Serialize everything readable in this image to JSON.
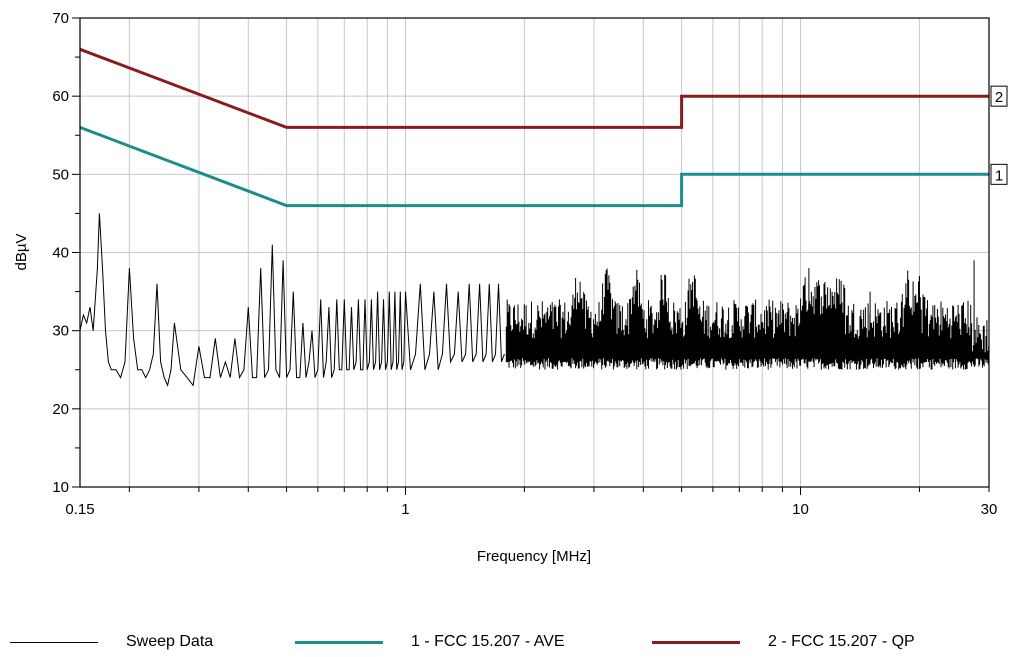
{
  "chart_data": {
    "type": "line",
    "xlabel": "Frequency [MHz]",
    "ylabel": "dBµV",
    "xscale": "log",
    "xlim": [
      0.15,
      30
    ],
    "ylim": [
      10,
      70
    ],
    "xtick_labels": [
      {
        "value": 0.15,
        "label": "0.15"
      },
      {
        "value": 1,
        "label": "1"
      },
      {
        "value": 10,
        "label": "10"
      },
      {
        "value": 30,
        "label": "30"
      }
    ],
    "ytick_labels": [
      {
        "value": 10,
        "label": "10"
      },
      {
        "value": 20,
        "label": "20"
      },
      {
        "value": 30,
        "label": "30"
      },
      {
        "value": 40,
        "label": "40"
      },
      {
        "value": 50,
        "label": "50"
      },
      {
        "value": 60,
        "label": "60"
      },
      {
        "value": 70,
        "label": "70"
      }
    ],
    "grid": true,
    "legend_position": "bottom",
    "series": [
      {
        "name": "Sweep Data",
        "color": "#000000",
        "noise_band": {
          "x_start": 1.8,
          "x_end": 30
        },
        "x": [
          0.15,
          0.153,
          0.156,
          0.159,
          0.162,
          0.166,
          0.168,
          0.171,
          0.174,
          0.177,
          0.18,
          0.185,
          0.19,
          0.195,
          0.2,
          0.205,
          0.21,
          0.215,
          0.22,
          0.225,
          0.23,
          0.235,
          0.24,
          0.245,
          0.25,
          0.255,
          0.26,
          0.27,
          0.28,
          0.29,
          0.3,
          0.31,
          0.32,
          0.33,
          0.34,
          0.35,
          0.36,
          0.37,
          0.38,
          0.39,
          0.4,
          0.41,
          0.42,
          0.43,
          0.44,
          0.45,
          0.46,
          0.47,
          0.48,
          0.49,
          0.5,
          0.51,
          0.52,
          0.53,
          0.54,
          0.55,
          0.56,
          0.57,
          0.58,
          0.59,
          0.6,
          0.61,
          0.62,
          0.63,
          0.64,
          0.65,
          0.66,
          0.67,
          0.68,
          0.69,
          0.7,
          0.71,
          0.72,
          0.73,
          0.74,
          0.75,
          0.76,
          0.77,
          0.78,
          0.79,
          0.8,
          0.81,
          0.82,
          0.83,
          0.84,
          0.85,
          0.86,
          0.87,
          0.88,
          0.89,
          0.9,
          0.91,
          0.92,
          0.93,
          0.94,
          0.95,
          0.96,
          0.97,
          0.98,
          0.99,
          1.0,
          1.03,
          1.06,
          1.09,
          1.12,
          1.15,
          1.18,
          1.21,
          1.24,
          1.27,
          1.3,
          1.33,
          1.36,
          1.39,
          1.42,
          1.45,
          1.48,
          1.51,
          1.54,
          1.57,
          1.6,
          1.63,
          1.66,
          1.69,
          1.72,
          1.75,
          1.78
        ],
        "y": [
          30,
          32,
          31,
          33,
          30,
          38,
          45,
          38,
          30,
          26,
          25,
          25,
          24,
          26,
          38,
          29,
          25,
          25,
          24,
          25,
          27,
          36,
          26,
          24,
          23,
          25,
          31,
          25,
          24,
          23,
          28,
          24,
          24,
          29,
          24,
          26,
          24,
          29,
          24,
          25,
          33,
          24,
          24,
          38,
          24,
          25,
          41,
          25,
          24,
          39,
          24,
          25,
          35,
          24,
          24,
          31,
          24,
          26,
          30,
          24,
          25,
          34,
          24,
          26,
          33,
          24,
          25,
          34,
          25,
          25,
          34,
          25,
          25,
          33,
          25,
          26,
          34,
          25,
          25,
          34,
          25,
          26,
          34,
          25,
          26,
          35,
          25,
          26,
          34,
          25,
          26,
          35,
          25,
          26,
          35,
          25,
          26,
          35,
          25,
          26,
          35,
          25,
          27,
          36,
          25,
          27,
          35,
          25,
          27,
          36,
          26,
          27,
          35,
          26,
          27,
          36,
          26,
          27,
          36,
          26,
          27,
          36,
          26,
          27,
          36,
          26,
          27
        ]
      },
      {
        "name": "1 - FCC 15.207 - AVE",
        "color": "#1c8c8c",
        "end_label": "1",
        "x": [
          0.15,
          0.5,
          0.5,
          5,
          5,
          30
        ],
        "y": [
          56,
          46,
          46,
          46,
          50,
          50
        ]
      },
      {
        "name": "2 - FCC 15.207 - QP",
        "color": "#8b1a1a",
        "end_label": "2",
        "x": [
          0.15,
          0.5,
          0.5,
          5,
          5,
          30
        ],
        "y": [
          66,
          56,
          56,
          56,
          60,
          60
        ]
      }
    ]
  },
  "legend": {
    "items": [
      {
        "label": "Sweep Data",
        "color": "#000000"
      },
      {
        "label": "1 - FCC 15.207 - AVE",
        "color": "#1c8c8c"
      },
      {
        "label": "2 - FCC 15.207 - QP",
        "color": "#8b1a1a"
      }
    ]
  }
}
